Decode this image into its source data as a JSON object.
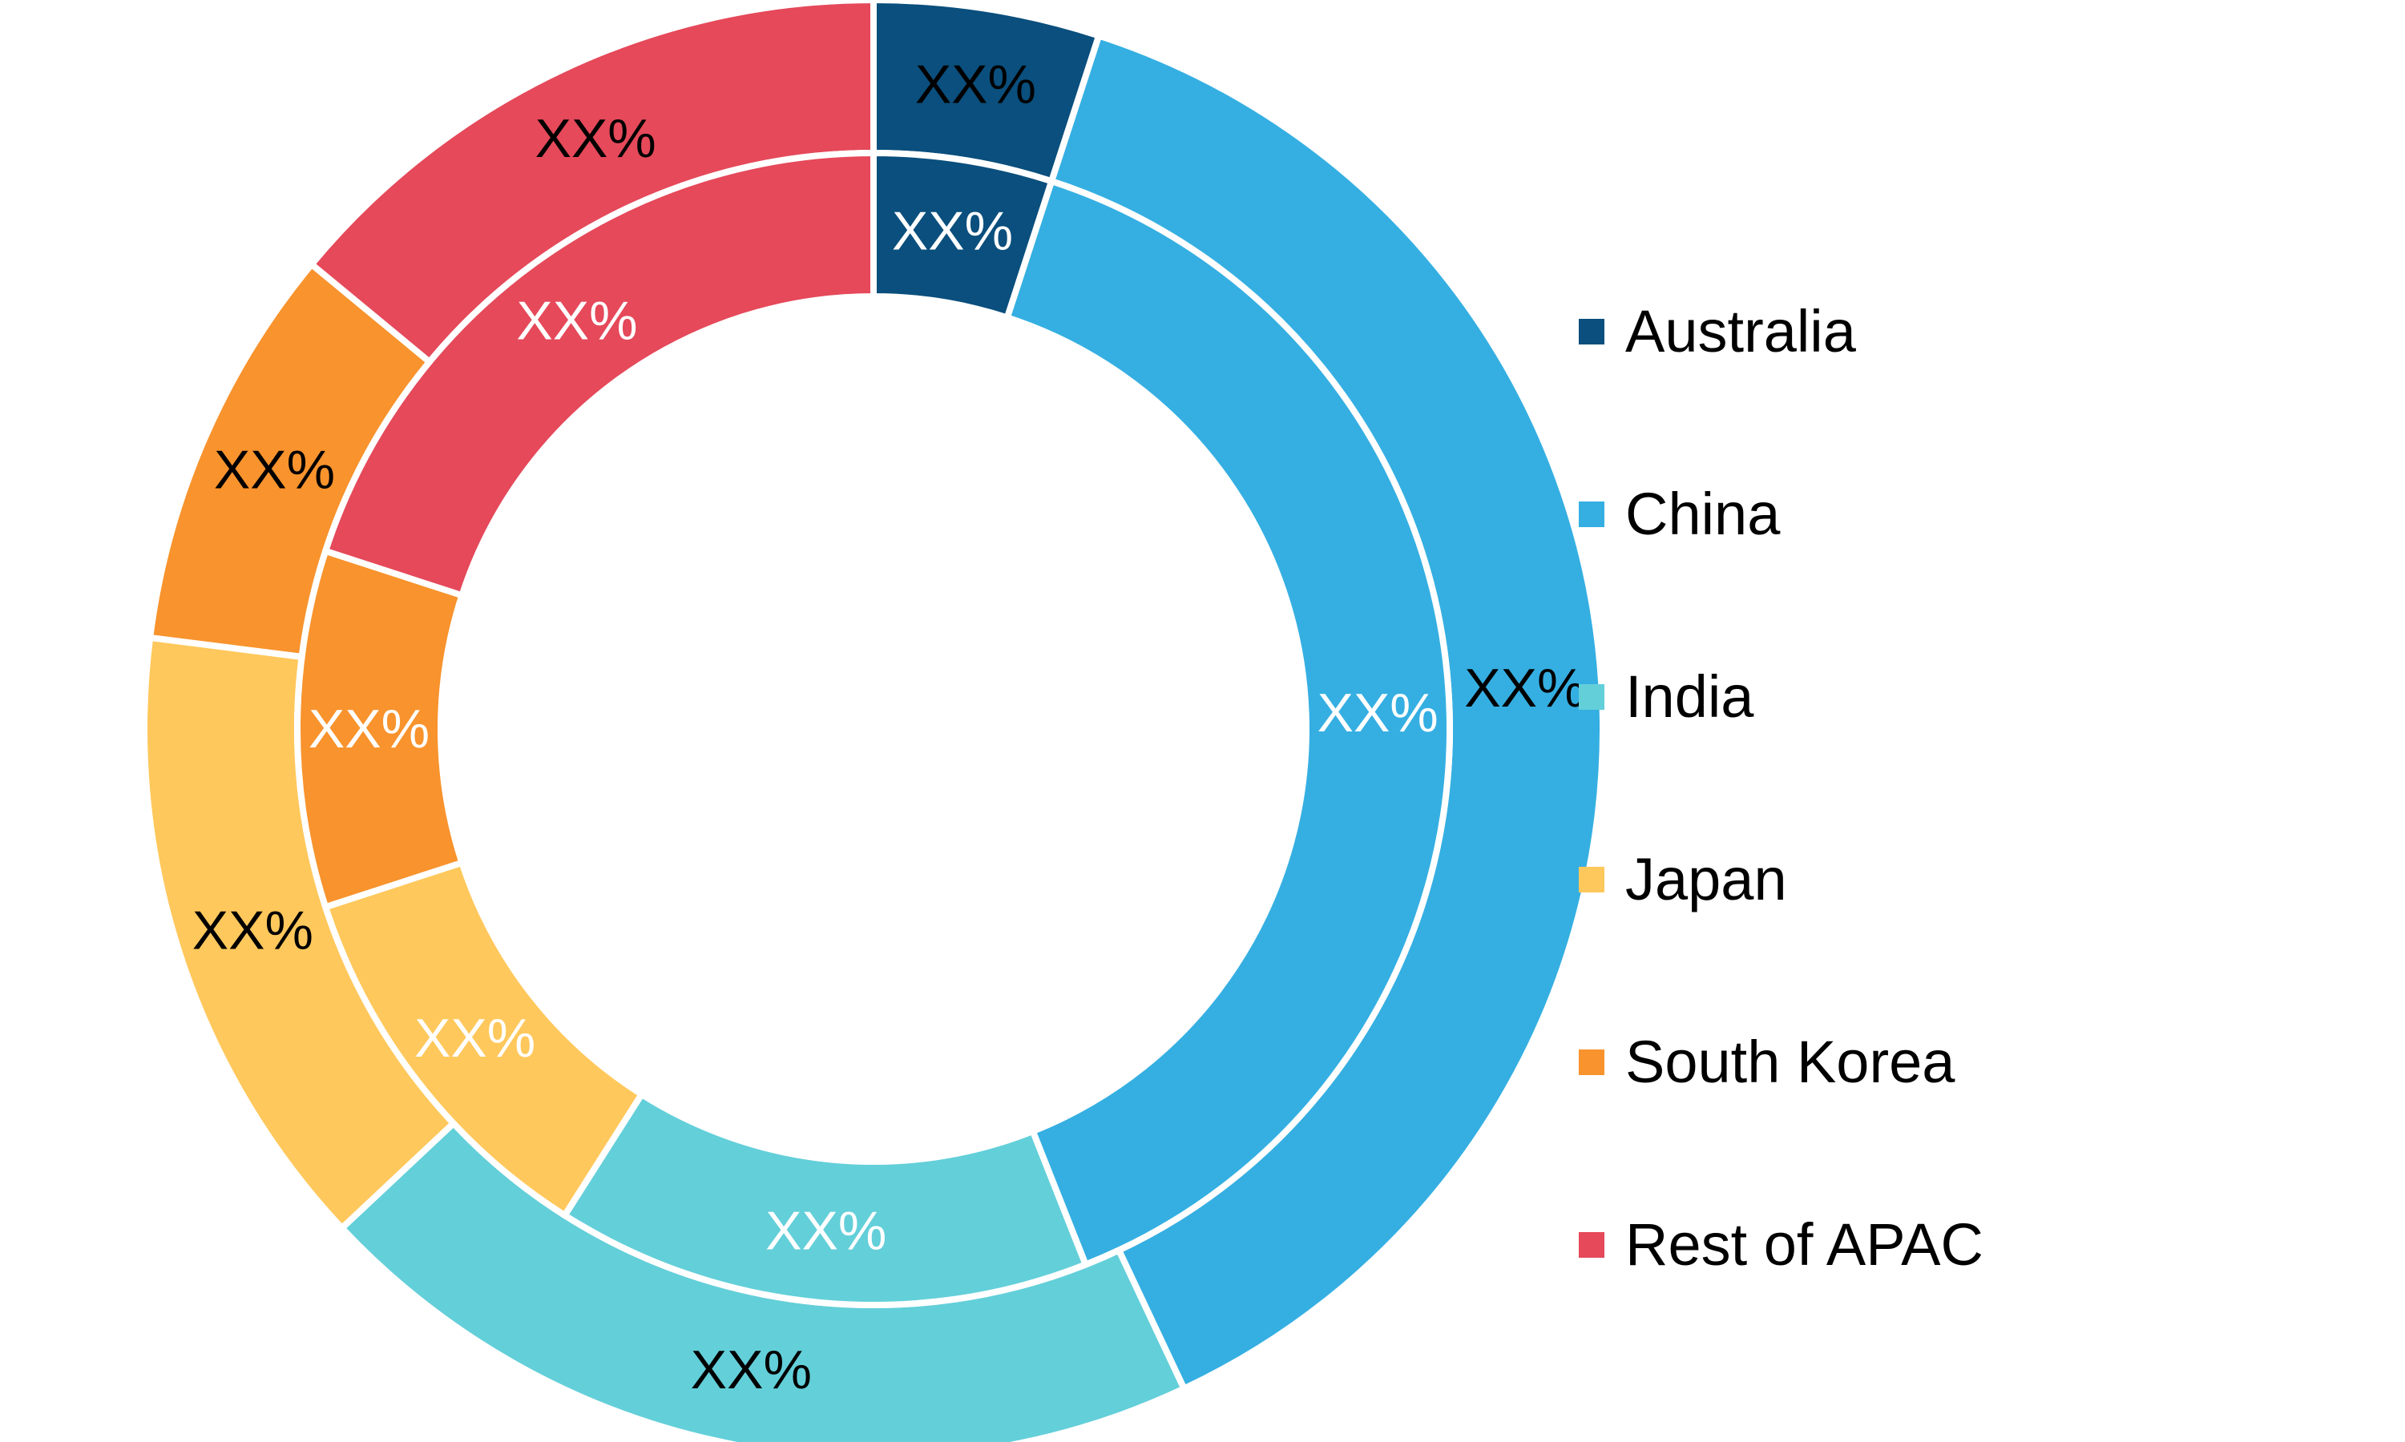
{
  "chart_data": {
    "type": "pie",
    "variant": "nested-donut",
    "legend_position": "right",
    "categories": [
      "Australia",
      "China",
      "India",
      "Japan",
      "South Korea",
      "Rest of APAC"
    ],
    "colors": [
      "#0A4F7D",
      "#35AFE2",
      "#63CFD9",
      "#FFC85C",
      "#F8932D",
      "#E5495A"
    ],
    "series": [
      {
        "ring": "outer",
        "values": [
          5,
          38,
          20,
          14,
          9,
          14
        ],
        "labels": [
          "XX%",
          "XX%",
          "XX%",
          "XX%",
          "XX%",
          "XX%"
        ],
        "label_color": "#000000"
      },
      {
        "ring": "inner",
        "values": [
          5,
          39,
          15,
          11,
          10,
          20
        ],
        "labels": [
          "XX%",
          "XX%",
          "XX%",
          "XX%",
          "XX%",
          "XX%"
        ],
        "label_color": "#ffffff"
      }
    ]
  }
}
